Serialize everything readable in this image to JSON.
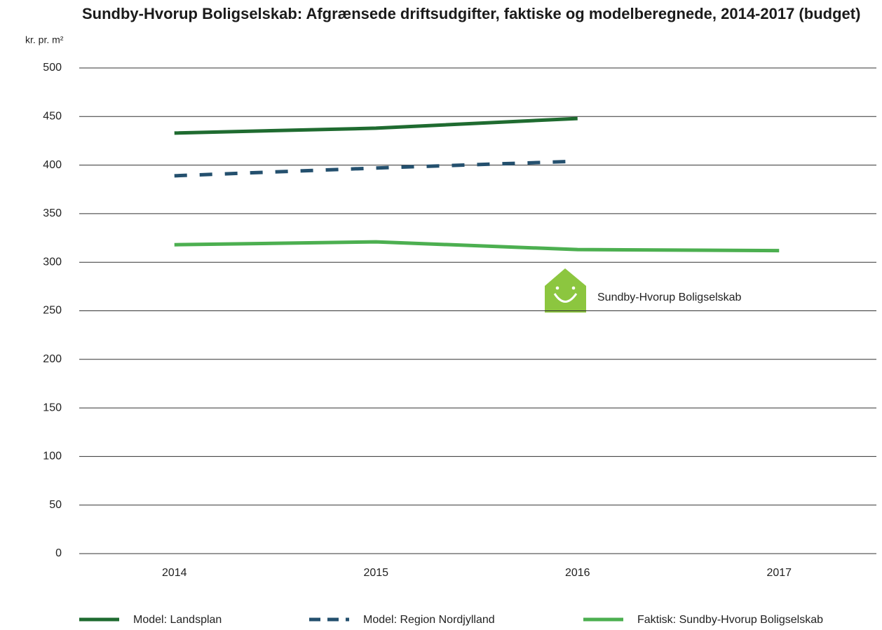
{
  "chart_data": {
    "type": "line",
    "title": "Sundby-Hvorup Boligselskab: Afgrænsede driftsudgifter, faktiske og modelberegnede, 2014-2017 (budget)",
    "y_label": "kr. pr. m²",
    "annotation": "Sundby-Hvorup Boligselskab",
    "categories": [
      "2014",
      "2015",
      "2016",
      "2017"
    ],
    "series": [
      {
        "name": "Model: Landsplan",
        "color": "#1f6b30",
        "dash": false,
        "values": [
          433,
          438,
          448,
          null
        ]
      },
      {
        "name": "Model: Region Nordjylland",
        "color": "#24506e",
        "dash": true,
        "values": [
          389,
          397,
          404,
          null
        ]
      },
      {
        "name": "Faktisk: Sundby-Hvorup Boligselskab",
        "color": "#4caf50",
        "dash": false,
        "values": [
          318,
          321,
          313,
          312
        ]
      }
    ],
    "ylim": [
      0,
      500
    ],
    "yticks": [
      0,
      50,
      100,
      150,
      200,
      250,
      300,
      350,
      400,
      450,
      500
    ],
    "grid": true
  }
}
